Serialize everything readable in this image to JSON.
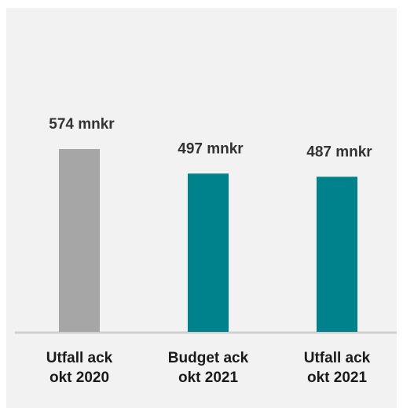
{
  "chart_data": {
    "type": "bar",
    "categories": [
      [
        "Utfall ack",
        "okt 2020"
      ],
      [
        "Budget ack",
        "okt 2021"
      ],
      [
        "Utfall ack",
        "okt 2021"
      ]
    ],
    "values": [
      574,
      497,
      487
    ],
    "data_labels": [
      "574  mnkr",
      "497  mnkr",
      "487  mnkr"
    ],
    "colors": [
      "#a6a6a6",
      "#00828c",
      "#00828c"
    ],
    "title": "",
    "xlabel": "",
    "ylabel": "",
    "grid": false,
    "legend": "none"
  }
}
